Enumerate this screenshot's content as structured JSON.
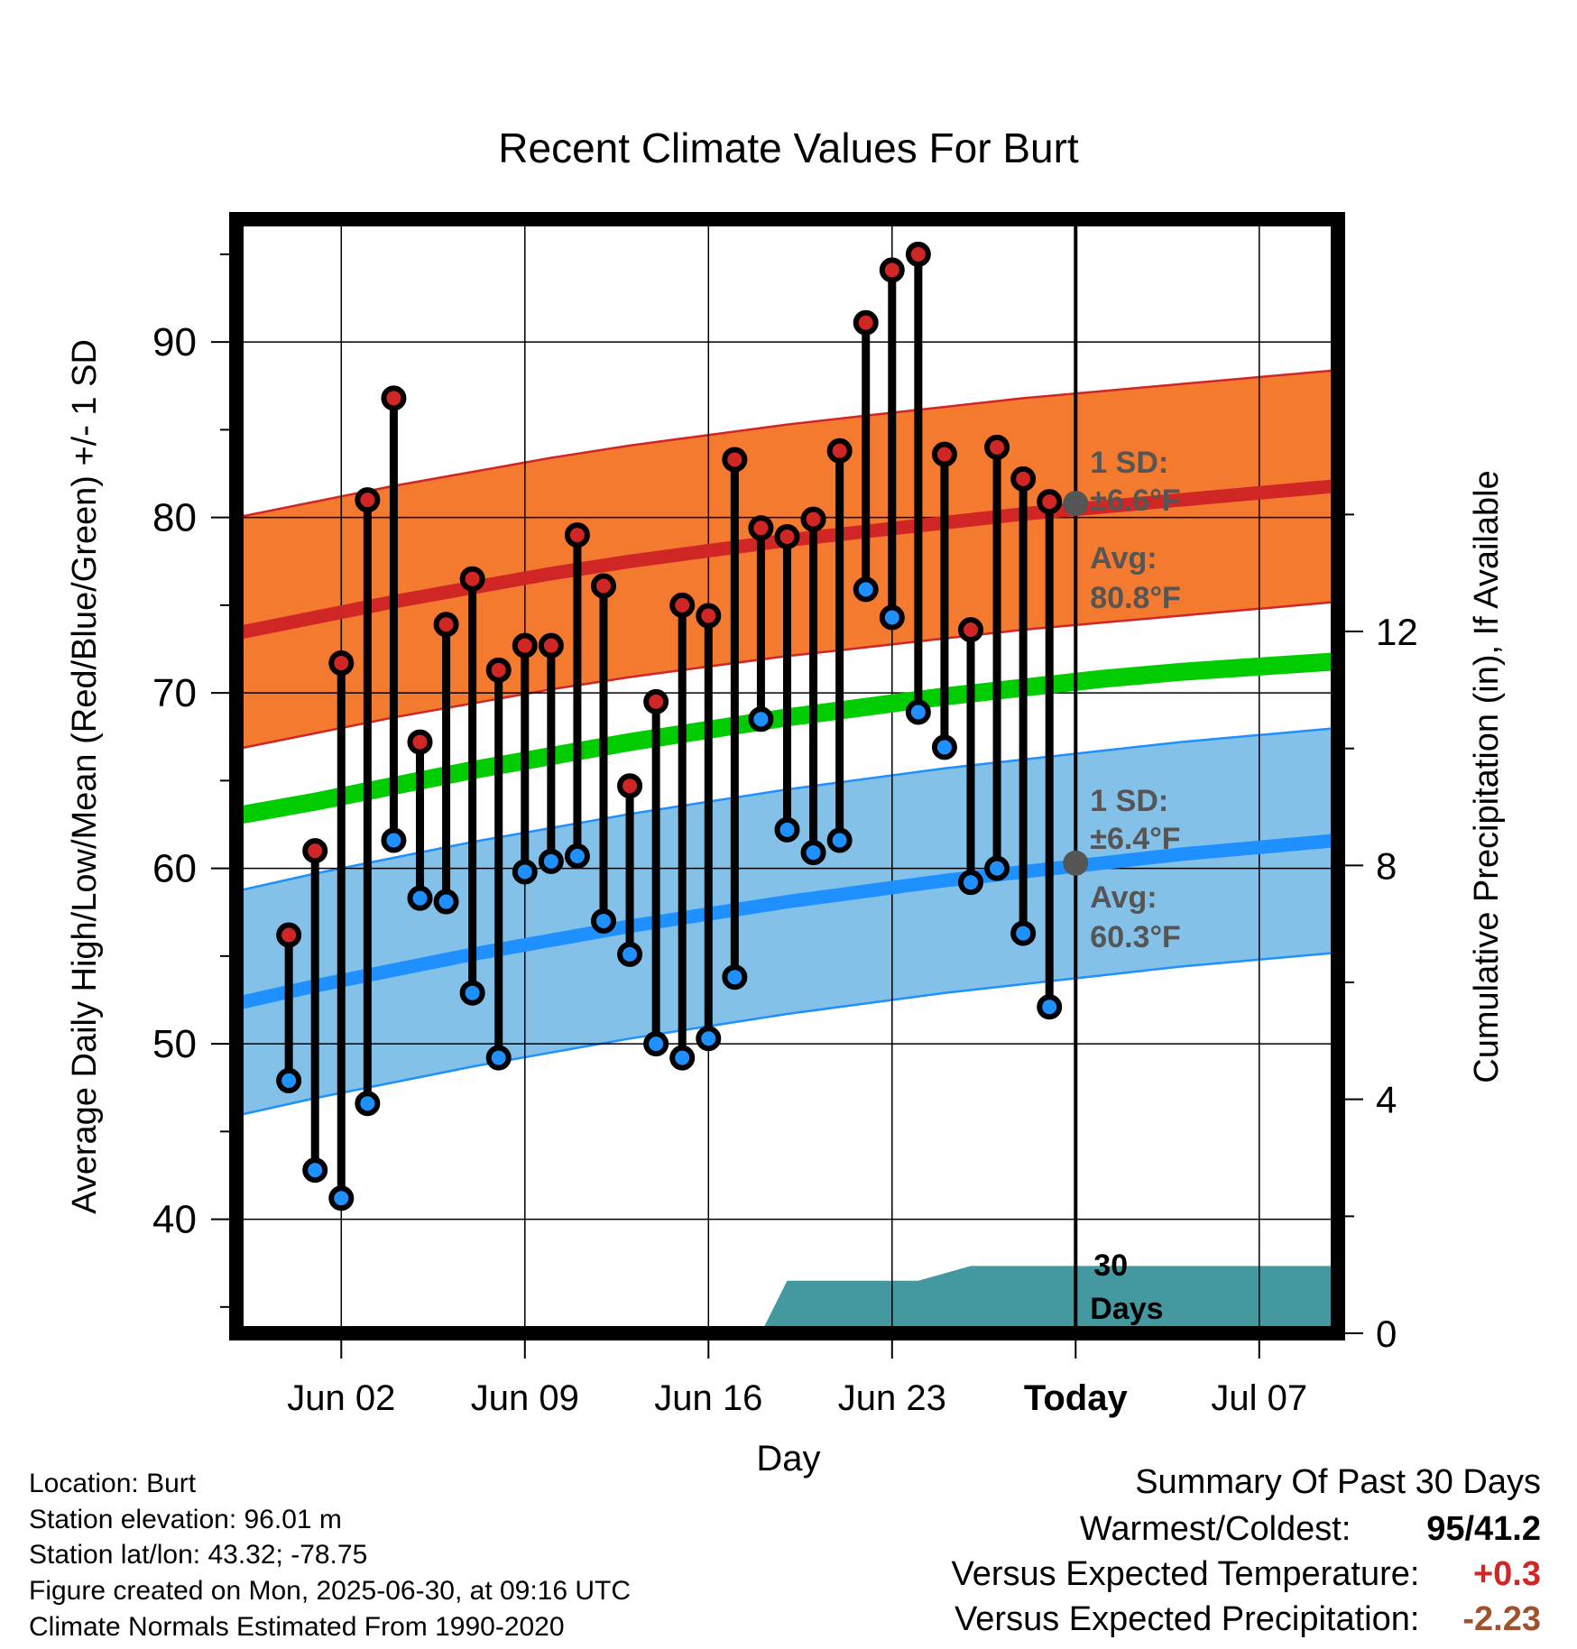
{
  "chart_data": {
    "type": "line",
    "title": "Recent Climate Values For Burt",
    "xlabel": "Day",
    "ylabel_left": "Average Daily High/Low/Mean (Red/Blue/Green) +/- 1 SD",
    "ylabel_right": "Cumulative Precipitation (in), If Available",
    "xlim_day": [
      -3,
      39
    ],
    "ylim": [
      33.5,
      97
    ],
    "y2lim": [
      0,
      19.05
    ],
    "y_ticks": [
      40,
      50,
      60,
      70,
      80,
      90
    ],
    "y2_ticks": [
      0,
      4,
      8,
      12
    ],
    "x_ticks": [
      {
        "day": 1,
        "label": "Jun 02"
      },
      {
        "day": 8,
        "label": "Jun 09"
      },
      {
        "day": 15,
        "label": "Jun 16"
      },
      {
        "day": 22,
        "label": "Jun 23"
      },
      {
        "day": 29,
        "label": "Today"
      },
      {
        "day": 36,
        "label": "Jul 07"
      }
    ],
    "days": [
      -1,
      0,
      1,
      2,
      3,
      4,
      5,
      6,
      7,
      8,
      9,
      10,
      11,
      12,
      13,
      14,
      15,
      16,
      17,
      18,
      19,
      20,
      21,
      22,
      23,
      24,
      25,
      26,
      27,
      28
    ],
    "daily_high": [
      56.2,
      61.0,
      71.7,
      81.0,
      86.8,
      67.2,
      73.9,
      76.5,
      71.3,
      72.7,
      72.7,
      79.0,
      76.1,
      64.7,
      69.5,
      75.0,
      74.4,
      83.3,
      79.4,
      78.9,
      79.9,
      83.8,
      91.1,
      94.1,
      95.0,
      83.6,
      73.6,
      84.0,
      82.2,
      80.9
    ],
    "daily_low": [
      47.9,
      42.8,
      41.2,
      46.6,
      61.6,
      58.3,
      58.1,
      52.9,
      49.2,
      59.8,
      60.4,
      60.7,
      57.0,
      55.1,
      50.0,
      49.2,
      50.3,
      53.8,
      68.5,
      62.2,
      60.9,
      61.6,
      75.9,
      74.3,
      68.9,
      66.9,
      59.2,
      60.0,
      56.3,
      52.1
    ],
    "normal_high_x": [
      -3,
      0,
      3,
      6,
      9,
      12,
      15,
      18,
      21,
      24,
      27,
      30,
      33,
      36,
      39
    ],
    "normal_high": [
      73.4,
      74.3,
      75.2,
      76.0,
      76.8,
      77.5,
      78.1,
      78.7,
      79.2,
      79.7,
      80.2,
      80.6,
      81.0,
      81.4,
      81.8
    ],
    "normal_high_sd": 6.6,
    "normal_low_x": [
      -3,
      0,
      3,
      6,
      9,
      12,
      15,
      18,
      21,
      24,
      27,
      30,
      33,
      36,
      39
    ],
    "normal_low": [
      52.3,
      53.3,
      54.2,
      55.1,
      55.9,
      56.7,
      57.4,
      58.1,
      58.7,
      59.3,
      59.8,
      60.3,
      60.8,
      61.2,
      61.6
    ],
    "normal_low_sd": 6.4,
    "normal_mean_x": [
      -3,
      0,
      3,
      6,
      9,
      12,
      15,
      18,
      21,
      24,
      27,
      30,
      33,
      36,
      39
    ],
    "normal_mean": [
      63.0,
      63.8,
      64.7,
      65.6,
      66.4,
      67.2,
      67.9,
      68.6,
      69.2,
      69.8,
      70.3,
      70.8,
      71.2,
      71.5,
      71.8
    ],
    "precip_x": [
      17,
      18,
      23,
      25,
      29,
      39
    ],
    "precip_y": [
      0,
      0.9,
      0.9,
      1.15,
      1.15,
      1.15
    ],
    "marker_high": {
      "day": 29,
      "value": 80.8
    },
    "marker_low": {
      "day": 29,
      "value": 60.3
    },
    "annotations": {
      "high_sd_label": "1 SD:",
      "high_sd_value": "±6.6°F",
      "high_avg_label": "Avg:",
      "high_avg_value": "80.8°F",
      "low_sd_label": "1 SD:",
      "low_sd_value": "±6.4°F",
      "low_avg_label": "Avg:",
      "low_avg_value": "60.3°F",
      "period_number": "30",
      "period_unit": "Days"
    },
    "colors": {
      "high_band": "#f47a30",
      "high_line": "#d02626",
      "low_band": "#84c1e8",
      "low_line": "#1e90ff",
      "mean_line": "#00cc00",
      "precip": "#4499a1",
      "high_dot": "#d02626",
      "low_dot": "#1e90ff",
      "marker": "#555555",
      "annotation": "#555555"
    }
  },
  "info": {
    "location": "Location: Burt",
    "elevation": "Station elevation: 96.01 m",
    "latlon": "Station lat/lon: 43.32; -78.75",
    "created": "Figure created on Mon, 2025-06-30, at 09:16 UTC",
    "normals": "Climate Normals Estimated From 1990-2020"
  },
  "summary": {
    "heading": "Summary Of Past 30 Days",
    "warmest_label": "Warmest/Coldest:",
    "warmest_value": "95/41.2",
    "temp_label": "Versus Expected Temperature:",
    "temp_value": "+0.3",
    "precip_label": "Versus Expected Precipitation:",
    "precip_value": "-2.23",
    "temp_color": "#d02626",
    "precip_color": "#a0522d"
  }
}
